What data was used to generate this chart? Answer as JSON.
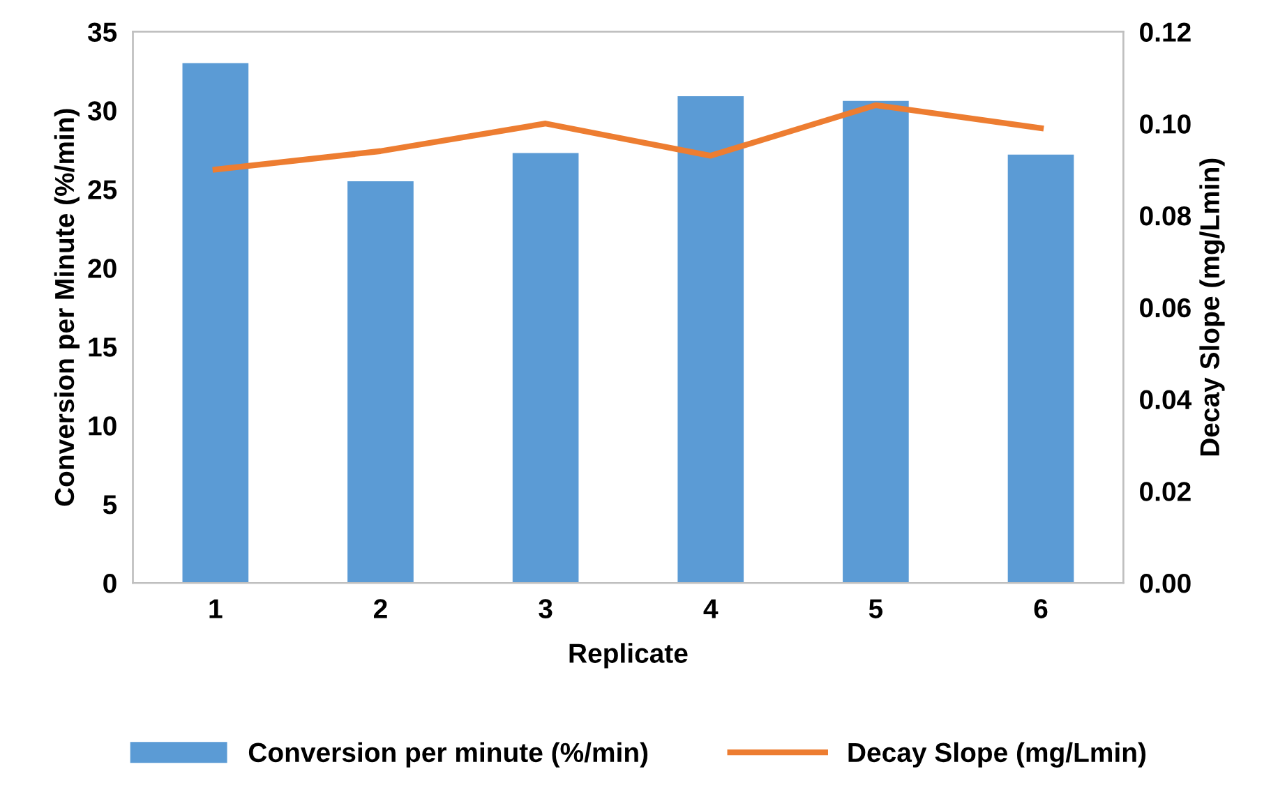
{
  "chart_data": {
    "type": "bar",
    "xlabel": "Replicate",
    "ylabel": "Conversion per Minute (%/min)",
    "y2label": "Decay Slope (mg/Lmin)",
    "categories": [
      "1",
      "2",
      "3",
      "4",
      "5",
      "6"
    ],
    "series": [
      {
        "name": "Conversion per minute (%/min)",
        "color": "#5b9bd5",
        "values": [
          33,
          25.5,
          27.3,
          30.9,
          30.6,
          27.2
        ]
      },
      {
        "name": "Decay Slope (mg/Lmin)",
        "color": "#ed7d31",
        "type": "line",
        "axis": "y2",
        "values": [
          0.09,
          0.094,
          0.1,
          0.093,
          0.104,
          0.099
        ]
      }
    ],
    "ylim": [
      0,
      35
    ],
    "yticks": [
      0,
      5,
      10,
      15,
      20,
      25,
      30,
      35
    ],
    "y2lim": [
      0,
      0.12
    ],
    "y2ticks": [
      {
        "value": 0,
        "label": "0.00"
      },
      {
        "value": 0.02,
        "label": "0.02"
      },
      {
        "value": 0.04,
        "label": "0.04"
      },
      {
        "value": 0.06,
        "label": "0.06"
      },
      {
        "value": 0.08,
        "label": "0.08"
      },
      {
        "value": 0.1,
        "label": "0.10"
      },
      {
        "value": 0.12,
        "label": "0.12"
      }
    ],
    "grid": false,
    "legend": "bottom",
    "marker": "none",
    "line_style": "solid"
  }
}
